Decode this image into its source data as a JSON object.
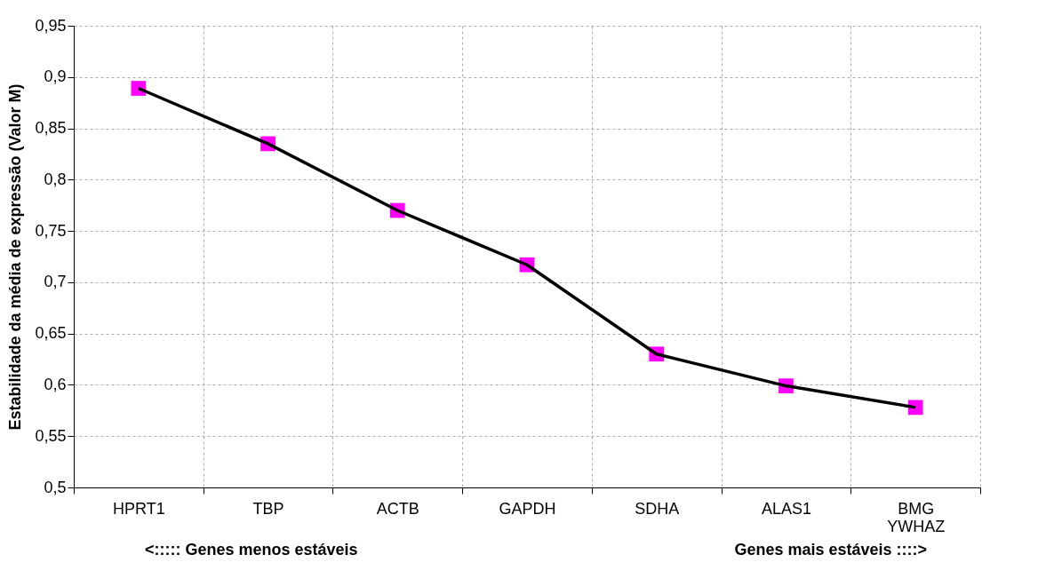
{
  "chart_data": {
    "type": "line",
    "ylabel": "Estabilidade da média de expressão (Valor M)",
    "categories": [
      "HPRT1",
      "TBP",
      "ACTB",
      "GAPDH",
      "SDHA",
      "ALAS1",
      "BMG\nYWHAZ"
    ],
    "series": [
      {
        "color": "#000000",
        "colors": [
          "#ff00ff",
          "#ff00ff",
          "#ff00ff",
          "#ff00ff",
          "#ff00ff",
          "#ff00ff",
          "#ff00ff"
        ],
        "values": [
          0.889,
          0.835,
          0.77,
          0.717,
          0.63,
          0.599,
          0.578
        ]
      }
    ],
    "marker": "square",
    "line_style": "solid",
    "ylim": [
      0.5,
      0.95
    ],
    "yticks": [
      {
        "value": 0.5,
        "label": "0,5"
      },
      {
        "value": 0.55,
        "label": "0,55"
      },
      {
        "value": 0.6,
        "label": "0,6"
      },
      {
        "value": 0.65,
        "label": "0,65"
      },
      {
        "value": 0.7,
        "label": "0,7"
      },
      {
        "value": 0.75,
        "label": "0,75"
      },
      {
        "value": 0.8,
        "label": "0,8"
      },
      {
        "value": 0.85,
        "label": "0,85"
      },
      {
        "value": 0.9,
        "label": "0,9"
      },
      {
        "value": 0.95,
        "label": "0,95"
      }
    ],
    "grid": true,
    "annotations": [
      "<:::::  Genes menos estáveis",
      "Genes mais estáveis ::::>"
    ]
  }
}
